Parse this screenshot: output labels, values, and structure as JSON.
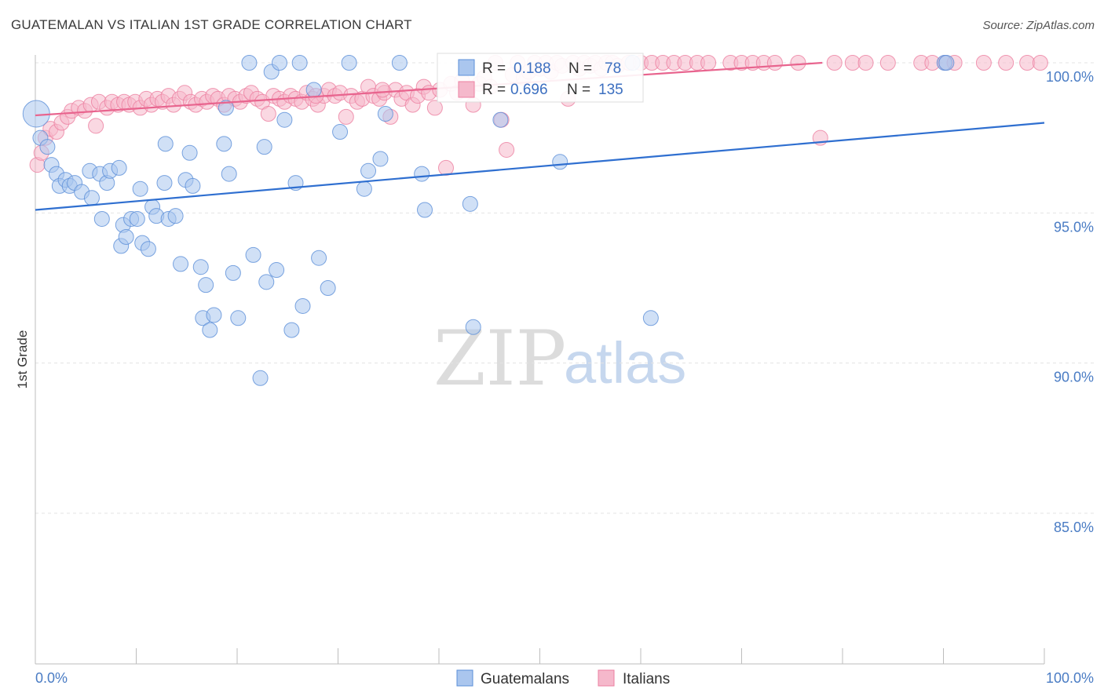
{
  "header": {
    "title": "GUATEMALAN VS ITALIAN 1ST GRADE CORRELATION CHART",
    "source": "Source: ZipAtlas.com"
  },
  "watermark": {
    "zip": "ZIP",
    "atlas": "atlas"
  },
  "legend_stats": {
    "r_label": "R =",
    "n_label": "N =",
    "rows": [
      {
        "series": "Guatemalans",
        "r": "0.188",
        "n": "78",
        "color": "#5b8fd8"
      },
      {
        "series": "Italians",
        "r": "0.696",
        "n": "135",
        "color": "#ec7fa0"
      }
    ]
  },
  "chart_data": {
    "type": "scatter",
    "title": "GUATEMALAN VS ITALIAN 1ST GRADE CORRELATION CHART",
    "xlabel": "",
    "ylabel": "1st Grade",
    "xlim": [
      0,
      100
    ],
    "ylim": [
      80.2,
      100.7
    ],
    "x_tick_labels": [
      "0.0%",
      "100.0%"
    ],
    "y_ticks": [
      {
        "value": 100.0,
        "label": "100.0%"
      },
      {
        "value": 95.0,
        "label": "95.0%"
      },
      {
        "value": 90.0,
        "label": "90.0%"
      },
      {
        "value": 85.0,
        "label": "85.0%"
      }
    ],
    "grid": "horizontal dashed",
    "legend_position": "bottom",
    "series": [
      {
        "name": "Guatemalans",
        "color": "#5b8fd8",
        "fill": "#aac6ee",
        "trend": {
          "x": [
            0,
            100
          ],
          "y": [
            95.1,
            98.0
          ]
        },
        "points": [
          [
            0.1,
            98.3
          ],
          [
            0.5,
            97.5
          ],
          [
            1.2,
            97.2
          ],
          [
            1.6,
            96.6
          ],
          [
            2.1,
            96.3
          ],
          [
            2.4,
            95.9
          ],
          [
            3.0,
            96.1
          ],
          [
            3.4,
            95.9
          ],
          [
            3.9,
            96.0
          ],
          [
            4.6,
            95.7
          ],
          [
            5.4,
            96.4
          ],
          [
            5.6,
            95.5
          ],
          [
            6.4,
            96.3
          ],
          [
            7.1,
            96.0
          ],
          [
            7.4,
            96.4
          ],
          [
            8.3,
            96.5
          ],
          [
            6.6,
            94.8
          ],
          [
            8.5,
            93.9
          ],
          [
            8.7,
            94.6
          ],
          [
            9.0,
            94.2
          ],
          [
            9.5,
            94.8
          ],
          [
            10.1,
            94.8
          ],
          [
            10.4,
            95.8
          ],
          [
            10.6,
            94.0
          ],
          [
            11.2,
            93.8
          ],
          [
            11.6,
            95.2
          ],
          [
            12.0,
            94.9
          ],
          [
            12.8,
            96.0
          ],
          [
            12.9,
            97.3
          ],
          [
            13.2,
            94.8
          ],
          [
            13.9,
            94.9
          ],
          [
            14.4,
            93.3
          ],
          [
            14.9,
            96.1
          ],
          [
            15.3,
            97.0
          ],
          [
            15.6,
            95.9
          ],
          [
            16.4,
            93.2
          ],
          [
            16.6,
            91.5
          ],
          [
            16.9,
            92.6
          ],
          [
            17.3,
            91.1
          ],
          [
            17.7,
            91.6
          ],
          [
            18.7,
            97.3
          ],
          [
            18.9,
            98.5
          ],
          [
            19.2,
            96.3
          ],
          [
            19.6,
            93.0
          ],
          [
            20.1,
            91.5
          ],
          [
            21.2,
            100.0
          ],
          [
            21.6,
            93.6
          ],
          [
            22.3,
            89.5
          ],
          [
            22.7,
            97.2
          ],
          [
            22.9,
            92.7
          ],
          [
            23.4,
            99.7
          ],
          [
            23.9,
            93.1
          ],
          [
            24.2,
            100.0
          ],
          [
            24.7,
            98.1
          ],
          [
            25.4,
            91.1
          ],
          [
            25.8,
            96.0
          ],
          [
            26.2,
            100.0
          ],
          [
            26.5,
            91.9
          ],
          [
            27.6,
            99.1
          ],
          [
            28.1,
            93.5
          ],
          [
            29.0,
            92.5
          ],
          [
            30.2,
            97.7
          ],
          [
            31.1,
            100.0
          ],
          [
            32.6,
            95.8
          ],
          [
            33.0,
            96.4
          ],
          [
            34.2,
            96.8
          ],
          [
            34.7,
            98.3
          ],
          [
            36.1,
            100.0
          ],
          [
            38.3,
            96.3
          ],
          [
            38.6,
            95.1
          ],
          [
            43.1,
            95.3
          ],
          [
            43.4,
            91.2
          ],
          [
            46.1,
            98.1
          ],
          [
            52.0,
            96.7
          ],
          [
            59.2,
            100.0
          ],
          [
            61.0,
            91.5
          ],
          [
            90.1,
            100.0
          ],
          [
            90.3,
            100.0
          ]
        ]
      },
      {
        "name": "Italians",
        "color": "#ec7fa0",
        "fill": "#f5b8cb",
        "trend": {
          "x": [
            0,
            78
          ],
          "y": [
            98.25,
            100.0
          ]
        },
        "points": [
          [
            0.2,
            96.6
          ],
          [
            0.6,
            97.0
          ],
          [
            1.0,
            97.5
          ],
          [
            1.5,
            97.8
          ],
          [
            2.1,
            97.7
          ],
          [
            2.6,
            98.0
          ],
          [
            3.2,
            98.2
          ],
          [
            3.6,
            98.4
          ],
          [
            4.3,
            98.5
          ],
          [
            4.9,
            98.4
          ],
          [
            5.5,
            98.6
          ],
          [
            6.3,
            98.7
          ],
          [
            6.0,
            97.9
          ],
          [
            7.1,
            98.5
          ],
          [
            7.6,
            98.7
          ],
          [
            8.2,
            98.6
          ],
          [
            8.8,
            98.7
          ],
          [
            9.3,
            98.6
          ],
          [
            9.9,
            98.7
          ],
          [
            10.4,
            98.5
          ],
          [
            11.0,
            98.8
          ],
          [
            11.5,
            98.6
          ],
          [
            12.1,
            98.8
          ],
          [
            12.6,
            98.7
          ],
          [
            13.2,
            98.9
          ],
          [
            13.7,
            98.6
          ],
          [
            14.3,
            98.8
          ],
          [
            14.8,
            99.0
          ],
          [
            15.4,
            98.7
          ],
          [
            15.9,
            98.6
          ],
          [
            16.5,
            98.8
          ],
          [
            17.0,
            98.7
          ],
          [
            17.6,
            98.9
          ],
          [
            18.1,
            98.8
          ],
          [
            18.7,
            98.6
          ],
          [
            19.2,
            98.9
          ],
          [
            19.8,
            98.8
          ],
          [
            20.3,
            98.7
          ],
          [
            20.9,
            98.9
          ],
          [
            21.4,
            99.0
          ],
          [
            22.0,
            98.8
          ],
          [
            22.5,
            98.7
          ],
          [
            23.1,
            98.3
          ],
          [
            23.6,
            98.9
          ],
          [
            24.2,
            98.8
          ],
          [
            24.7,
            98.7
          ],
          [
            25.3,
            98.9
          ],
          [
            25.8,
            98.8
          ],
          [
            26.4,
            98.7
          ],
          [
            26.9,
            99.0
          ],
          [
            27.5,
            98.8
          ],
          [
            28.0,
            98.6
          ],
          [
            28.6,
            98.9
          ],
          [
            29.1,
            99.1
          ],
          [
            29.7,
            98.9
          ],
          [
            30.2,
            99.0
          ],
          [
            30.8,
            98.2
          ],
          [
            31.3,
            98.9
          ],
          [
            31.9,
            98.7
          ],
          [
            32.4,
            98.8
          ],
          [
            33.0,
            99.2
          ],
          [
            33.5,
            98.9
          ],
          [
            34.1,
            98.8
          ],
          [
            34.6,
            99.0
          ],
          [
            35.2,
            98.2
          ],
          [
            35.7,
            99.1
          ],
          [
            36.3,
            98.8
          ],
          [
            36.8,
            99.0
          ],
          [
            37.4,
            98.6
          ],
          [
            37.9,
            98.9
          ],
          [
            38.5,
            99.2
          ],
          [
            39.0,
            99.0
          ],
          [
            39.6,
            98.5
          ],
          [
            40.1,
            99.1
          ],
          [
            40.7,
            96.5
          ],
          [
            41.2,
            99.3
          ],
          [
            41.8,
            99.0
          ],
          [
            42.3,
            99.4
          ],
          [
            42.9,
            99.1
          ],
          [
            43.4,
            98.6
          ],
          [
            44.0,
            99.3
          ],
          [
            44.5,
            99.5
          ],
          [
            45.1,
            99.2
          ],
          [
            45.6,
            100.0
          ],
          [
            46.2,
            98.1
          ],
          [
            46.7,
            97.1
          ],
          [
            47.3,
            99.6
          ],
          [
            47.8,
            100.0
          ],
          [
            48.4,
            99.5
          ],
          [
            48.9,
            99.7
          ],
          [
            49.5,
            100.0
          ],
          [
            50.0,
            99.8
          ],
          [
            50.6,
            100.0
          ],
          [
            51.1,
            99.7
          ],
          [
            51.7,
            100.0
          ],
          [
            52.2,
            99.9
          ],
          [
            52.8,
            98.8
          ],
          [
            53.3,
            100.0
          ],
          [
            53.9,
            99.8
          ],
          [
            54.4,
            100.0
          ],
          [
            55.0,
            99.9
          ],
          [
            55.5,
            100.0
          ],
          [
            56.1,
            99.8
          ],
          [
            56.6,
            100.0
          ],
          [
            57.2,
            100.0
          ],
          [
            57.7,
            99.9
          ],
          [
            58.8,
            100.0
          ],
          [
            60.0,
            100.0
          ],
          [
            61.1,
            100.0
          ],
          [
            62.2,
            100.0
          ],
          [
            63.3,
            100.0
          ],
          [
            64.4,
            100.0
          ],
          [
            65.6,
            100.0
          ],
          [
            66.7,
            100.0
          ],
          [
            68.9,
            100.0
          ],
          [
            70.0,
            100.0
          ],
          [
            71.1,
            100.0
          ],
          [
            72.2,
            100.0
          ],
          [
            73.3,
            100.0
          ],
          [
            75.6,
            100.0
          ],
          [
            77.8,
            97.5
          ],
          [
            79.2,
            100.0
          ],
          [
            81.0,
            100.0
          ],
          [
            82.3,
            100.0
          ],
          [
            84.5,
            100.0
          ],
          [
            87.8,
            100.0
          ],
          [
            88.9,
            100.0
          ],
          [
            90.2,
            100.0
          ],
          [
            91.1,
            100.0
          ],
          [
            94.0,
            100.0
          ],
          [
            96.2,
            100.0
          ],
          [
            98.3,
            100.0
          ],
          [
            99.6,
            100.0
          ],
          [
            27.8,
            98.9
          ],
          [
            34.4,
            99.1
          ]
        ]
      }
    ]
  }
}
